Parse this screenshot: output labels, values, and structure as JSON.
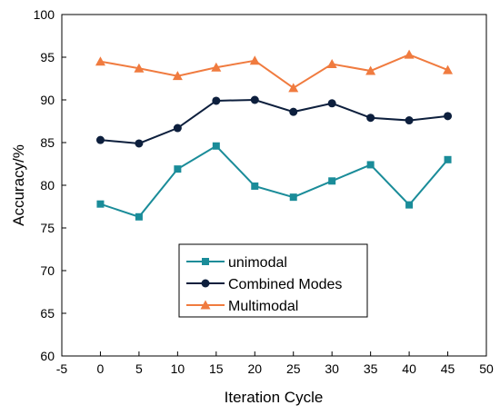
{
  "chart_data": {
    "type": "line",
    "xlabel": "Iteration Cycle",
    "ylabel": "Accuracy/%",
    "xlim": [
      -5,
      50
    ],
    "ylim": [
      60,
      100
    ],
    "xticks": [
      -5,
      0,
      5,
      10,
      15,
      20,
      25,
      30,
      35,
      40,
      45,
      50
    ],
    "yticks": [
      60,
      65,
      70,
      75,
      80,
      85,
      90,
      95,
      100
    ],
    "grid": false,
    "legend_position": "lower-center",
    "x": [
      0,
      5,
      10,
      15,
      20,
      25,
      30,
      35,
      40,
      45
    ],
    "series": [
      {
        "name": "unimodal",
        "color": "#1a8c99",
        "marker": "square",
        "values": [
          77.8,
          76.3,
          81.9,
          84.6,
          79.9,
          78.6,
          80.5,
          82.4,
          77.7,
          83.0
        ]
      },
      {
        "name": "Combined Modes",
        "color": "#0d1f3d",
        "marker": "circle",
        "values": [
          85.3,
          84.9,
          86.7,
          89.9,
          90.0,
          88.6,
          89.6,
          87.9,
          87.6,
          88.1
        ]
      },
      {
        "name": "Multimodal",
        "color": "#f07b3f",
        "marker": "triangle",
        "values": [
          94.5,
          93.7,
          92.8,
          93.8,
          94.6,
          91.4,
          94.2,
          93.4,
          95.3,
          93.5
        ]
      }
    ]
  }
}
